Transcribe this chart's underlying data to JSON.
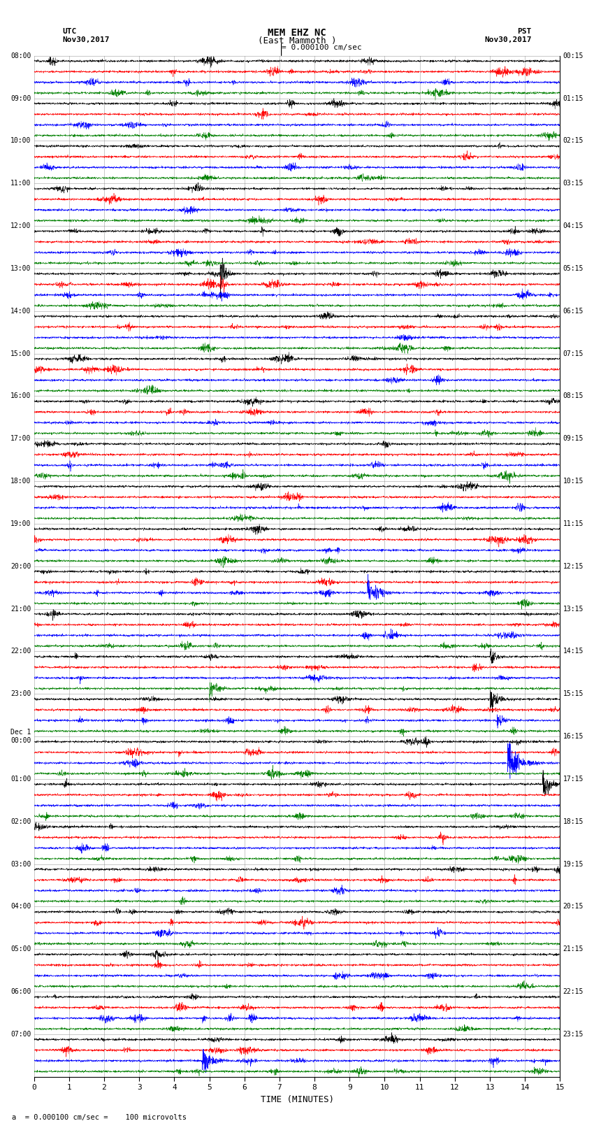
{
  "title_line1": "MEM EHZ NC",
  "title_line2": "(East Mammoth )",
  "scale_text": "= 0.000100 cm/sec",
  "footer_label": "a  = 0.000100 cm/sec =    100 microvolts",
  "xlabel": "TIME (MINUTES)",
  "left_timezone": "UTC",
  "left_date": "Nov30,2017",
  "right_timezone": "PST",
  "right_date": "Nov30,2017",
  "utc_labels": [
    "08:00",
    "09:00",
    "10:00",
    "11:00",
    "12:00",
    "13:00",
    "14:00",
    "15:00",
    "16:00",
    "17:00",
    "18:00",
    "19:00",
    "20:00",
    "21:00",
    "22:00",
    "23:00",
    "Dec 1\n00:00",
    "01:00",
    "02:00",
    "03:00",
    "04:00",
    "05:00",
    "06:00",
    "07:00"
  ],
  "pst_labels": [
    "00:15",
    "01:15",
    "02:15",
    "03:15",
    "04:15",
    "05:15",
    "06:15",
    "07:15",
    "08:15",
    "09:15",
    "10:15",
    "11:15",
    "12:15",
    "13:15",
    "14:15",
    "15:15",
    "16:15",
    "17:15",
    "18:15",
    "19:15",
    "20:15",
    "21:15",
    "22:15",
    "23:15"
  ],
  "num_rows": 24,
  "traces_per_row": 4,
  "colors": [
    "black",
    "red",
    "blue",
    "green"
  ],
  "minutes_per_trace": 15,
  "background_color": "#ffffff",
  "grid_color": "#808080",
  "vgrid_color": "#b0b0b0",
  "noise_amplitude": 0.012,
  "seed": 12345
}
